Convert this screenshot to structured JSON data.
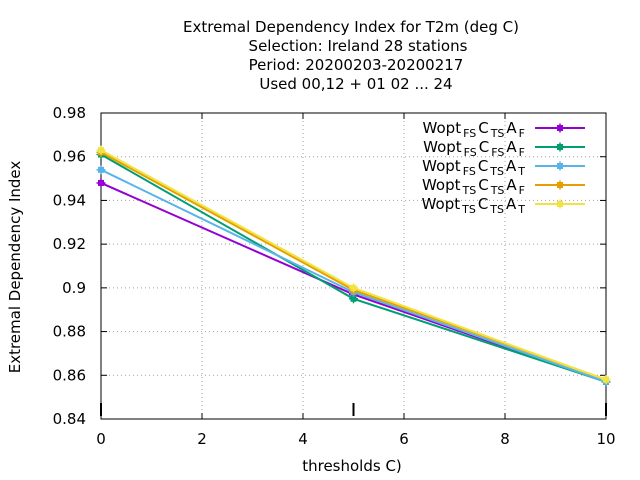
{
  "title_lines": [
    "Extremal Dependency Index  for T2m (deg C)",
    "Selection: Ireland     28 stations",
    "Period: 20200203-20200217",
    "Used  00,12  + 01 02 ... 24"
  ],
  "chart_data": {
    "type": "line",
    "xlabel": "thresholds C)",
    "ylabel": "Extremal Dependency Index",
    "xlim": [
      0,
      10
    ],
    "ylim": [
      0.84,
      0.98
    ],
    "x_ticks": [
      "0",
      "2",
      "4",
      "6",
      "8",
      "10"
    ],
    "y_ticks": [
      "0.84",
      "0.86",
      "0.88",
      "0.9",
      "0.92",
      "0.94",
      "0.96",
      "0.98"
    ],
    "x_tick_values": [
      0,
      2,
      4,
      6,
      8,
      10
    ],
    "y_tick_values": [
      0.84,
      0.86,
      0.88,
      0.9,
      0.92,
      0.94,
      0.96,
      0.98
    ],
    "grid": true,
    "legend_position": "top-right",
    "x": [
      0,
      5,
      10
    ],
    "series": [
      {
        "name": "Wopt FS C TS A F",
        "legend": {
          "base": "Wopt",
          "s1": "FS",
          "m": "C",
          "s2": "TS",
          "m2": "A",
          "s3": "F"
        },
        "color": "#9400d3",
        "values": [
          0.948,
          0.897,
          0.857
        ]
      },
      {
        "name": "Wopt FS C FS A F",
        "legend": {
          "base": "Wopt",
          "s1": "FS",
          "m": "C",
          "s2": "FS",
          "m2": "A",
          "s3": "F"
        },
        "color": "#009e73",
        "values": [
          0.961,
          0.895,
          0.857
        ]
      },
      {
        "name": "Wopt FS C TS A T",
        "legend": {
          "base": "Wopt",
          "s1": "FS",
          "m": "C",
          "s2": "TS",
          "m2": "A",
          "s3": "T"
        },
        "color": "#56b4e9",
        "values": [
          0.954,
          0.898,
          0.857
        ]
      },
      {
        "name": "Wopt TS C TS A F",
        "legend": {
          "base": "Wopt",
          "s1": "TS",
          "m": "C",
          "s2": "TS",
          "m2": "A",
          "s3": "F"
        },
        "color": "#e69f00",
        "values": [
          0.962,
          0.899,
          0.858
        ]
      },
      {
        "name": "Wopt TS C TS A T",
        "legend": {
          "base": "Wopt",
          "s1": "TS",
          "m": "C",
          "s2": "TS",
          "m2": "A",
          "s3": "T"
        },
        "color": "#f0e442",
        "values": [
          0.963,
          0.9,
          0.858
        ]
      }
    ]
  }
}
